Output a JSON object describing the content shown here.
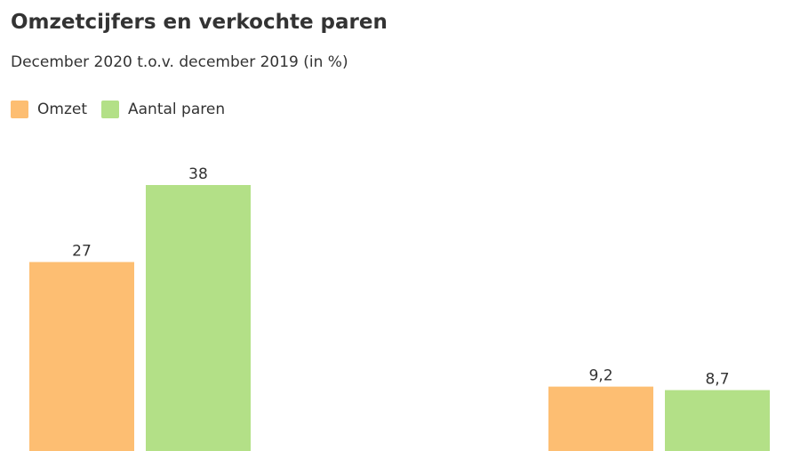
{
  "chart_data": {
    "type": "bar",
    "title": "Omzetcijfers en verkochte paren",
    "subtitle": "December 2020 t.o.v. december 2019 (in %)",
    "categories": [
      "",
      ""
    ],
    "series": [
      {
        "name": "Omzet",
        "color": "#fdbe72",
        "values": [
          27,
          9.2
        ],
        "labels": [
          "27",
          "9,2"
        ]
      },
      {
        "name": "Aantal paren",
        "color": "#b3e087",
        "values": [
          38,
          8.7
        ],
        "labels": [
          "38",
          "8,7"
        ]
      }
    ],
    "ylim": [
      0,
      38
    ],
    "grid": false,
    "legend_position": "top-left"
  }
}
